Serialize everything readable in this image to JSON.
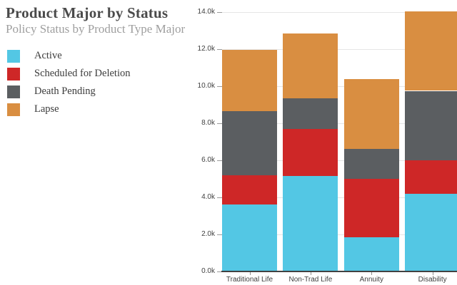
{
  "header": {
    "title": "Product Major by Status",
    "subtitle": "Policy Status by Product Type Major"
  },
  "legend": {
    "position": "top-left",
    "items": [
      {
        "label": "Active",
        "color": "#53C7E4"
      },
      {
        "label": "Scheduled for Deletion",
        "color": "#CE2727"
      },
      {
        "label": "Death Pending",
        "color": "#5B5E61"
      },
      {
        "label": "Lapse",
        "color": "#D98E41"
      }
    ]
  },
  "chart_data": {
    "type": "bar",
    "stacked": true,
    "title": "Product Major by Status",
    "subtitle": "Policy Status by Product Type Major",
    "categories": [
      "Traditional Life",
      "Non-Trad Life",
      "Annuity",
      "Disability"
    ],
    "series": [
      {
        "name": "Active",
        "color": "#53C7E4",
        "values": [
          3600,
          5150,
          1850,
          4200
        ]
      },
      {
        "name": "Scheduled for Deletion",
        "color": "#CE2727",
        "values": [
          1600,
          2550,
          3150,
          1800
        ]
      },
      {
        "name": "Death Pending",
        "color": "#5B5E61",
        "values": [
          3450,
          1650,
          1600,
          3750
        ]
      },
      {
        "name": "Lapse",
        "color": "#D98E41",
        "values": [
          3300,
          3500,
          3800,
          4300
        ]
      }
    ],
    "totals": [
      11950,
      12850,
      10400,
      14050
    ],
    "xlabel": "",
    "ylabel": "",
    "ylim": [
      0,
      14000
    ],
    "ytick_step": 2000,
    "ytick_labels": [
      "0.0k",
      "2.0k",
      "4.0k",
      "6.0k",
      "8.0k",
      "10.0k",
      "12.0k",
      "14.0k"
    ],
    "grid": true,
    "legend_position": "top-left"
  }
}
